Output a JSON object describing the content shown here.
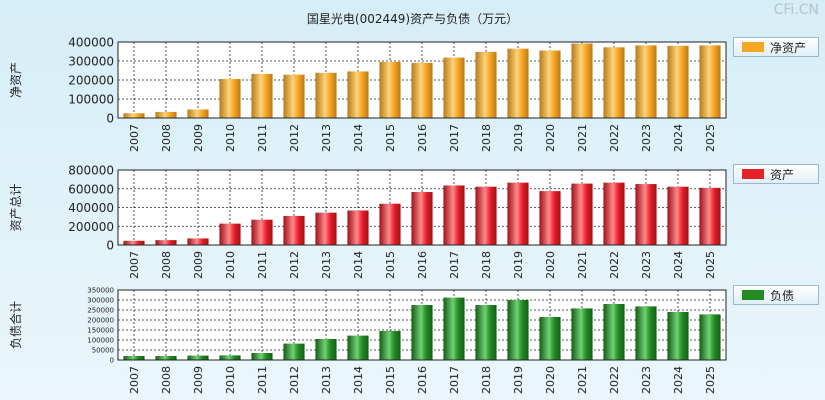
{
  "title": "国星光电(002449)资产与负债（万元）",
  "watermark": "CFi.CN",
  "colors": {
    "net_assets": "#f5a623",
    "assets": "#e8202a",
    "liabilities": "#228b22"
  },
  "chart_data": [
    {
      "type": "bar",
      "ylabel": "净资产",
      "legend": "净资产",
      "ylim": [
        0,
        400000
      ],
      "yticks": [
        0,
        100000,
        200000,
        300000,
        400000
      ],
      "categories": [
        "2007",
        "2008",
        "2009",
        "2010",
        "2011",
        "2012",
        "2013",
        "2014",
        "2015",
        "2016",
        "2017",
        "2018",
        "2019",
        "2020",
        "2021",
        "2022",
        "2023",
        "2024",
        "2025"
      ],
      "values": [
        25000,
        32000,
        45000,
        205000,
        232000,
        228000,
        238000,
        245000,
        295000,
        290000,
        318000,
        348000,
        365000,
        355000,
        392000,
        372000,
        382000,
        380000,
        382000
      ]
    },
    {
      "type": "bar",
      "ylabel": "资产总计",
      "legend": "资产",
      "ylim": [
        0,
        800000
      ],
      "yticks": [
        0,
        200000,
        400000,
        600000,
        800000
      ],
      "categories": [
        "2007",
        "2008",
        "2009",
        "2010",
        "2011",
        "2012",
        "2013",
        "2014",
        "2015",
        "2016",
        "2017",
        "2018",
        "2019",
        "2020",
        "2021",
        "2022",
        "2023",
        "2024",
        "2025"
      ],
      "values": [
        45000,
        52000,
        70000,
        228000,
        270000,
        310000,
        345000,
        368000,
        440000,
        565000,
        635000,
        622000,
        665000,
        575000,
        655000,
        665000,
        650000,
        622000,
        610000
      ]
    },
    {
      "type": "bar",
      "ylabel": "负债合计",
      "legend": "负债",
      "ylim": [
        0,
        350000
      ],
      "yticks": [
        0,
        50000,
        100000,
        150000,
        200000,
        250000,
        300000,
        350000
      ],
      "categories": [
        "2007",
        "2008",
        "2009",
        "2010",
        "2011",
        "2012",
        "2013",
        "2014",
        "2015",
        "2016",
        "2017",
        "2018",
        "2019",
        "2020",
        "2021",
        "2022",
        "2023",
        "2024",
        "2025"
      ],
      "values": [
        20000,
        20000,
        22000,
        23000,
        35000,
        82000,
        105000,
        122000,
        145000,
        275000,
        312000,
        275000,
        300000,
        215000,
        258000,
        280000,
        268000,
        240000,
        228000
      ]
    }
  ]
}
